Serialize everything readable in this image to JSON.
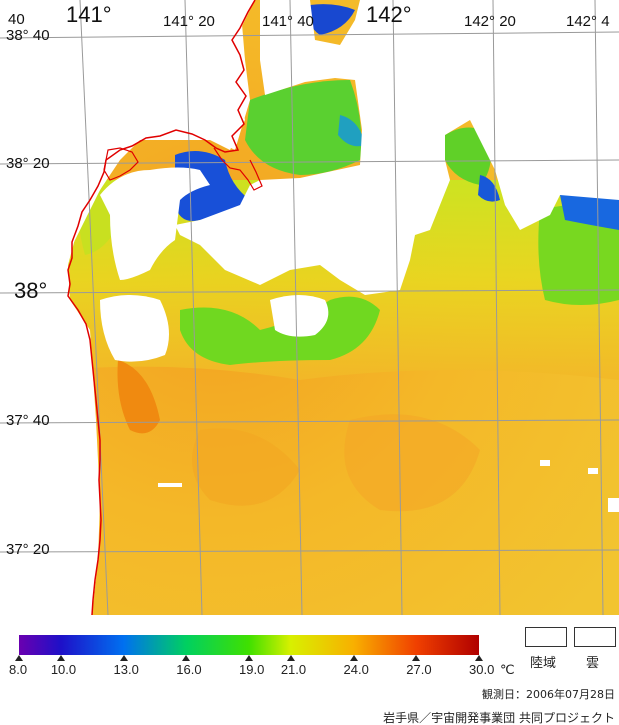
{
  "map": {
    "lon_labels": [
      {
        "text": "141°",
        "big": true
      },
      {
        "text": "141° 20",
        "big": false
      },
      {
        "text": "141° 40",
        "big": false
      },
      {
        "text": "142°",
        "big": true
      },
      {
        "text": "142° 20",
        "big": false
      },
      {
        "text": "142° 4",
        "big": false
      }
    ],
    "lat_labels": [
      {
        "text": "40",
        "big": false
      },
      {
        "text": "38° 40",
        "big": false
      },
      {
        "text": "38° 20",
        "big": false
      },
      {
        "text": "38°",
        "big": true
      },
      {
        "text": "37° 40",
        "big": false
      },
      {
        "text": "37° 20",
        "big": false
      }
    ],
    "colors": {
      "coastline": "#e00000",
      "grid": "#9a9a9a",
      "cloud": "#ffffff"
    }
  },
  "legend": {
    "scale_min": 8.0,
    "scale_max": 30.0,
    "gradient_stops": [
      {
        "value": 8.0,
        "color": "#6a00b0"
      },
      {
        "value": 10.0,
        "color": "#1e10c8"
      },
      {
        "value": 13.0,
        "color": "#0070f0"
      },
      {
        "value": 16.0,
        "color": "#00d060"
      },
      {
        "value": 19.0,
        "color": "#40e000"
      },
      {
        "value": 21.0,
        "color": "#d8f000"
      },
      {
        "value": 24.0,
        "color": "#f8b000"
      },
      {
        "value": 27.0,
        "color": "#f04000"
      },
      {
        "value": 30.0,
        "color": "#b00000"
      }
    ],
    "ticks": [
      {
        "value": 8.0,
        "label": "8.0"
      },
      {
        "value": 10.0,
        "label": "10.0"
      },
      {
        "value": 13.0,
        "label": "13.0"
      },
      {
        "value": 16.0,
        "label": "16.0"
      },
      {
        "value": 19.0,
        "label": "19.0"
      },
      {
        "value": 21.0,
        "label": "21.0"
      },
      {
        "value": 24.0,
        "label": "24.0"
      },
      {
        "value": 27.0,
        "label": "27.0"
      },
      {
        "value": 30.0,
        "label": "30.0"
      }
    ],
    "unit": "℃",
    "land_label": "陸域",
    "cloud_label": "雲"
  },
  "observation_date": "観測日：2006年07月28日",
  "credit": "岩手県／宇宙開発事業団  共同プロジェクト"
}
